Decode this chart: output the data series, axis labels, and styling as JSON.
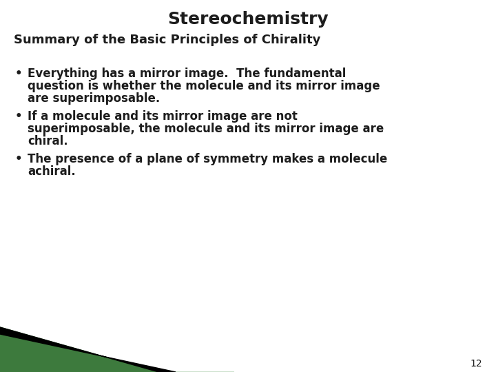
{
  "title": "Stereochemistry",
  "subtitle": "Summary of the Basic Principles of Chirality",
  "bullet1_line1": "Everything has a mirror image.  The fundamental",
  "bullet1_line2": "question is whether the molecule and its mirror image",
  "bullet1_line3": "are superimposable.",
  "bullet2_line1": "If a molecule and its mirror image are not",
  "bullet2_line2": "superimposable, the molecule and its mirror image are",
  "bullet2_line3": "chiral.",
  "bullet3_line1": "The presence of a plane of symmetry makes a molecule",
  "bullet3_line2": "achiral.",
  "page_number": "12",
  "bg_color": "#ffffff",
  "text_color": "#1c1c1c",
  "title_fontsize": 18,
  "subtitle_fontsize": 13,
  "bullet_fontsize": 12,
  "page_num_fontsize": 10,
  "green_dark": "#3d7a3d",
  "green_light": "#cce0cc",
  "black_stripe": "#000000"
}
